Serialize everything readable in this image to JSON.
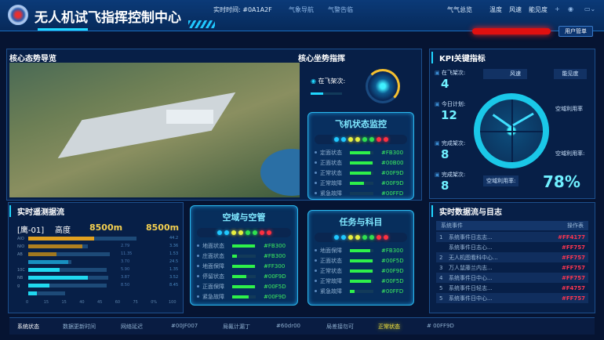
{
  "header": {
    "title": "无人机试飞指挥控制中心",
    "realtime": "实时时间: #0A1A2F",
    "weather_nav": "气象导航",
    "alert": "气警告临",
    "weather_total": "气气总览",
    "temp": "温度",
    "wind": "风速",
    "visibility": "能见度",
    "user_menu": "用户管单",
    "alarm_color": "#E01010"
  },
  "core": {
    "title": "核心态势导览",
    "command_title": "核心坐势指挥",
    "in_flight_label": "在飞架次:",
    "gauge_fraction": 0.4
  },
  "aircraft_card": {
    "title": "飞机状态监控",
    "rows": [
      {
        "label": "定面状态",
        "fill": 0.85,
        "value": "#FB300"
      },
      {
        "label": "正面状态",
        "fill": 0.95,
        "value": "#00B00"
      },
      {
        "label": "正常状态",
        "fill": 0.9,
        "value": "#00F9D"
      },
      {
        "label": "正常故障",
        "fill": 0.6,
        "value": "#00F9D"
      },
      {
        "label": "紧急故障",
        "fill": 0,
        "value": "#00FFD"
      }
    ]
  },
  "airspace_card": {
    "title": "空域与空管",
    "rows": [
      {
        "label": "地面状态",
        "fill": 0.95,
        "value": "#FB300"
      },
      {
        "label": "庄面状态",
        "fill": 0.2,
        "value": "#FB300"
      },
      {
        "label": "地面保障",
        "fill": 0.95,
        "value": "#FF300"
      },
      {
        "label": "停留状态",
        "fill": 0.6,
        "value": "#00F9D"
      },
      {
        "label": "正面保障",
        "fill": 0.95,
        "value": "#00F5D"
      },
      {
        "label": "紧急故障",
        "fill": 0.7,
        "value": "#00F9D"
      }
    ]
  },
  "mission_card": {
    "title": "任务与科目",
    "rows": [
      {
        "label": "地面保障",
        "fill": 0.85,
        "value": "#FB300"
      },
      {
        "label": "正面状态",
        "fill": 0.95,
        "value": "#00F5D"
      },
      {
        "label": "正常状态",
        "fill": 0.95,
        "value": "#00F9D"
      },
      {
        "label": "正常故障",
        "fill": 0.9,
        "value": "#00F5D"
      },
      {
        "label": "紧急故障",
        "fill": 0.2,
        "value": "#00FFD"
      }
    ]
  },
  "telemetry": {
    "title": "实时遥测据流",
    "aircraft": "[鹰-01]",
    "alt_label": "高度",
    "alt1": "8500m",
    "alt2": "8500m",
    "bars": [
      {
        "label": "AIO",
        "fill": 0.46,
        "track": 0.76,
        "v1": "",
        "v2": "44.2",
        "color": "#E0A020"
      },
      {
        "label": "NIO",
        "fill": 0.38,
        "track": 0.42,
        "v1": "2.79",
        "v2": "3.36",
        "color": "#B08020"
      },
      {
        "label": "AB",
        "fill": 0.2,
        "track": 0.57,
        "v1": "11.35",
        "v2": "1.53",
        "color": "#A07820"
      },
      {
        "label": "",
        "fill": 0.28,
        "track": 0.3,
        "v1": "3.70",
        "v2": "24.5",
        "color": "#1890C0"
      },
      {
        "label": "10C",
        "fill": 0.22,
        "track": 0.55,
        "v1": "5.90",
        "v2": "1.35",
        "color": "#20D8F0"
      },
      {
        "label": "NB",
        "fill": 0.42,
        "track": 0.56,
        "v1": "3.87",
        "v2": "3.52",
        "color": "#20D8F0"
      },
      {
        "label": "g",
        "fill": 0.15,
        "track": 0.55,
        "v1": "8.50",
        "v2": "8.45",
        "color": "#20D8F0"
      },
      {
        "label": "",
        "fill": 0.06,
        "track": 0.26,
        "v1": "",
        "v2": "",
        "color": "#20D8F0"
      }
    ],
    "ticks": [
      "0",
      "15",
      "15",
      "40",
      "45",
      "60",
      "75",
      "0%",
      "100"
    ]
  },
  "kpi": {
    "title": "KPI关键指标",
    "wind": "风速",
    "visibility": "能见度",
    "items": [
      {
        "label": "在飞架次:",
        "value": "4"
      },
      {
        "label": "今日计划:",
        "value": "12"
      },
      {
        "label": "完成架次:",
        "value": "8"
      },
      {
        "label": "完成架次:",
        "value": "8"
      }
    ],
    "util1": "空域利用率",
    "util2": "空域利用率:",
    "util_label": "空域利用率:",
    "util_value": "78%"
  },
  "log": {
    "title": "实时数据流与目志",
    "col1": "系统事件",
    "col2": "操作表",
    "rows": [
      {
        "n": "1",
        "t": "系统事件日志志...",
        "c": "#FF4177"
      },
      {
        "n": "",
        "t": "系统事件日志心...",
        "c": "#FF757"
      },
      {
        "n": "2",
        "t": "无人机图看科中心...",
        "c": "#FF757"
      },
      {
        "n": "3",
        "t": "万人鼠藤兰内志...",
        "c": "#FF757"
      },
      {
        "n": "4",
        "t": "系统事件日中心...",
        "c": "#FF757"
      },
      {
        "n": "5",
        "t": "系统事件日轻志...",
        "c": "#F4757"
      },
      {
        "n": "5",
        "t": "系统事件日中心...",
        "c": "#FF757"
      }
    ]
  },
  "footer": {
    "items": [
      "系统状态",
      "数据更新时间",
      "网络延迟",
      "#00JF007",
      "局氟计漏丁",
      "#60dr00",
      "局差接勿可",
      "正常状态",
      "# 00FF9D"
    ]
  }
}
